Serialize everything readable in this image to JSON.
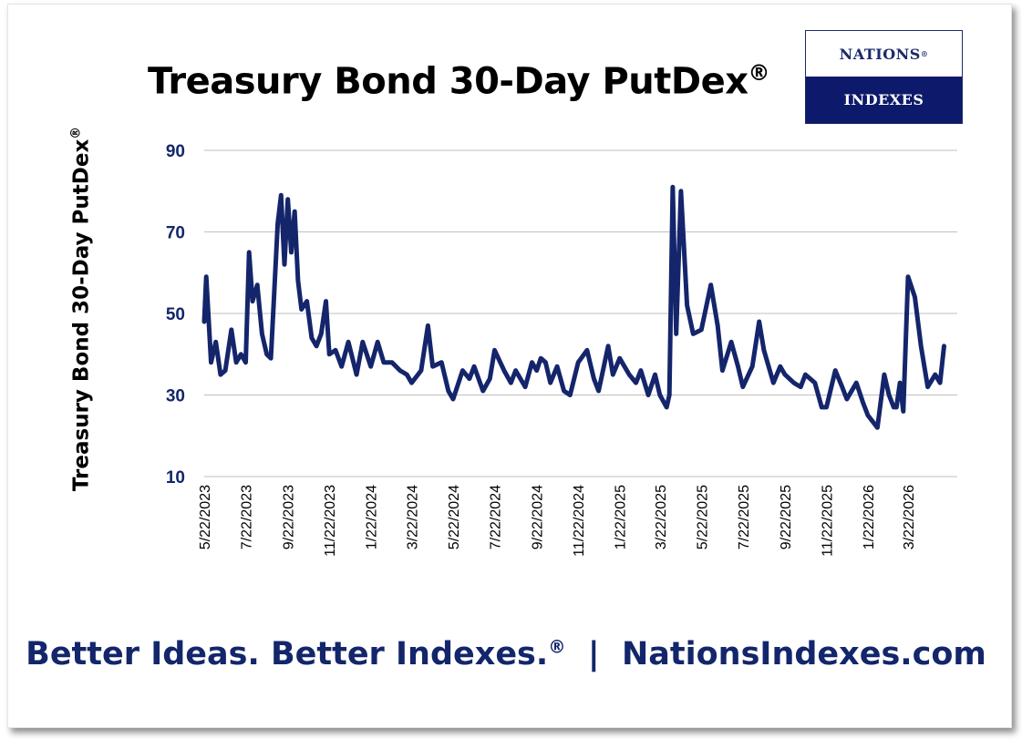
{
  "title": "Treasury Bond 30-Day PutDex",
  "title_mark": "®",
  "logo": {
    "top_text": "NATIONS",
    "top_mark": "®",
    "bottom_text": "INDEXES"
  },
  "tagline": {
    "part1": "Better Ideas.  Better Indexes.",
    "mark": "®",
    "sep": "|",
    "part2": "NationsIndexes.com"
  },
  "colors": {
    "line": "#14256b",
    "axis_text": "#13266b",
    "grid": "#bfbfbf",
    "logo_bg": "#0d1a6b"
  },
  "chart_data": {
    "type": "line",
    "ylabel": "Treasury Bond 30-Day PutDex",
    "ylabel_mark": "®",
    "ylim": [
      10,
      90
    ],
    "yticks": [
      10,
      30,
      50,
      70,
      90
    ],
    "grid": true,
    "x_tick_labels": [
      "5/22/2023",
      "7/22/2023",
      "9/22/2023",
      "11/22/2023",
      "1/22/2024",
      "3/22/2024",
      "5/22/2024",
      "7/22/2024",
      "9/22/2024",
      "11/22/2024",
      "1/22/2025",
      "3/22/2025",
      "5/22/2025",
      "7/22/2025",
      "9/22/2025",
      "11/22/2025",
      "1/22/2026",
      "3/22/2026"
    ],
    "series": [
      {
        "x": [
          "2023-05-22",
          "2023-05-25",
          "2023-06-01",
          "2023-06-08",
          "2023-06-15",
          "2023-06-22",
          "2023-07-01",
          "2023-07-08",
          "2023-07-15",
          "2023-07-22",
          "2023-07-27",
          "2023-08-01",
          "2023-08-08",
          "2023-08-15",
          "2023-08-22",
          "2023-08-28",
          "2023-09-01",
          "2023-09-07",
          "2023-09-12",
          "2023-09-17",
          "2023-09-22",
          "2023-09-27",
          "2023-10-02",
          "2023-10-07",
          "2023-10-12",
          "2023-10-20",
          "2023-10-27",
          "2023-11-03",
          "2023-11-10",
          "2023-11-17",
          "2023-11-22",
          "2023-12-01",
          "2023-12-10",
          "2023-12-20",
          "2024-01-01",
          "2024-01-10",
          "2024-01-22",
          "2024-02-01",
          "2024-02-10",
          "2024-02-22",
          "2024-03-05",
          "2024-03-15",
          "2024-03-22",
          "2024-04-05",
          "2024-04-15",
          "2024-04-22",
          "2024-05-05",
          "2024-05-15",
          "2024-05-22",
          "2024-06-05",
          "2024-06-15",
          "2024-06-22",
          "2024-07-05",
          "2024-07-15",
          "2024-07-22",
          "2024-08-05",
          "2024-08-15",
          "2024-08-22",
          "2024-09-05",
          "2024-09-15",
          "2024-09-22",
          "2024-09-28",
          "2024-10-05",
          "2024-10-12",
          "2024-10-22",
          "2024-11-01",
          "2024-11-10",
          "2024-11-22",
          "2024-12-05",
          "2024-12-15",
          "2024-12-22",
          "2025-01-05",
          "2025-01-12",
          "2025-01-22",
          "2025-02-05",
          "2025-02-15",
          "2025-02-22",
          "2025-03-05",
          "2025-03-15",
          "2025-03-22",
          "2025-04-01",
          "2025-04-05",
          "2025-04-10",
          "2025-04-15",
          "2025-04-22",
          "2025-05-01",
          "2025-05-10",
          "2025-05-22",
          "2025-06-05",
          "2025-06-15",
          "2025-06-22",
          "2025-07-05",
          "2025-07-15",
          "2025-07-22",
          "2025-08-05",
          "2025-08-15",
          "2025-08-22",
          "2025-09-05",
          "2025-09-15",
          "2025-09-22",
          "2025-10-05",
          "2025-10-15",
          "2025-10-22",
          "2025-11-05",
          "2025-11-15",
          "2025-11-22",
          "2025-12-05",
          "2025-12-15",
          "2025-12-22",
          "2026-01-05",
          "2026-01-15",
          "2026-01-22",
          "2026-02-05",
          "2026-02-15",
          "2026-02-22",
          "2026-03-01",
          "2026-03-05",
          "2026-03-10",
          "2026-03-15",
          "2026-03-22",
          "2026-04-01",
          "2026-04-10",
          "2026-04-20",
          "2026-05-01",
          "2026-05-08",
          "2026-05-14"
        ],
        "values": [
          48,
          59,
          38,
          43,
          35,
          36,
          46,
          38,
          40,
          38,
          65,
          53,
          57,
          45,
          40,
          39,
          52,
          72,
          79,
          62,
          78,
          65,
          75,
          58,
          51,
          53,
          44,
          42,
          45,
          53,
          40,
          41,
          37,
          43,
          35,
          43,
          37,
          43,
          38,
          38,
          36,
          35,
          33,
          36,
          47,
          37,
          38,
          31,
          29,
          36,
          34,
          37,
          31,
          34,
          41,
          36,
          33,
          36,
          32,
          38,
          36,
          39,
          38,
          33,
          37,
          31,
          30,
          38,
          41,
          34,
          31,
          42,
          35,
          39,
          35,
          33,
          36,
          30,
          35,
          30,
          27,
          30,
          81,
          45,
          80,
          52,
          45,
          46,
          57,
          47,
          36,
          43,
          37,
          32,
          37,
          48,
          41,
          33,
          37,
          35,
          33,
          32,
          35,
          33,
          27,
          27,
          36,
          32,
          29,
          33,
          28,
          25,
          22,
          35,
          30,
          27,
          27,
          33,
          26,
          59,
          54,
          42,
          32,
          35,
          33,
          42
        ]
      }
    ]
  }
}
